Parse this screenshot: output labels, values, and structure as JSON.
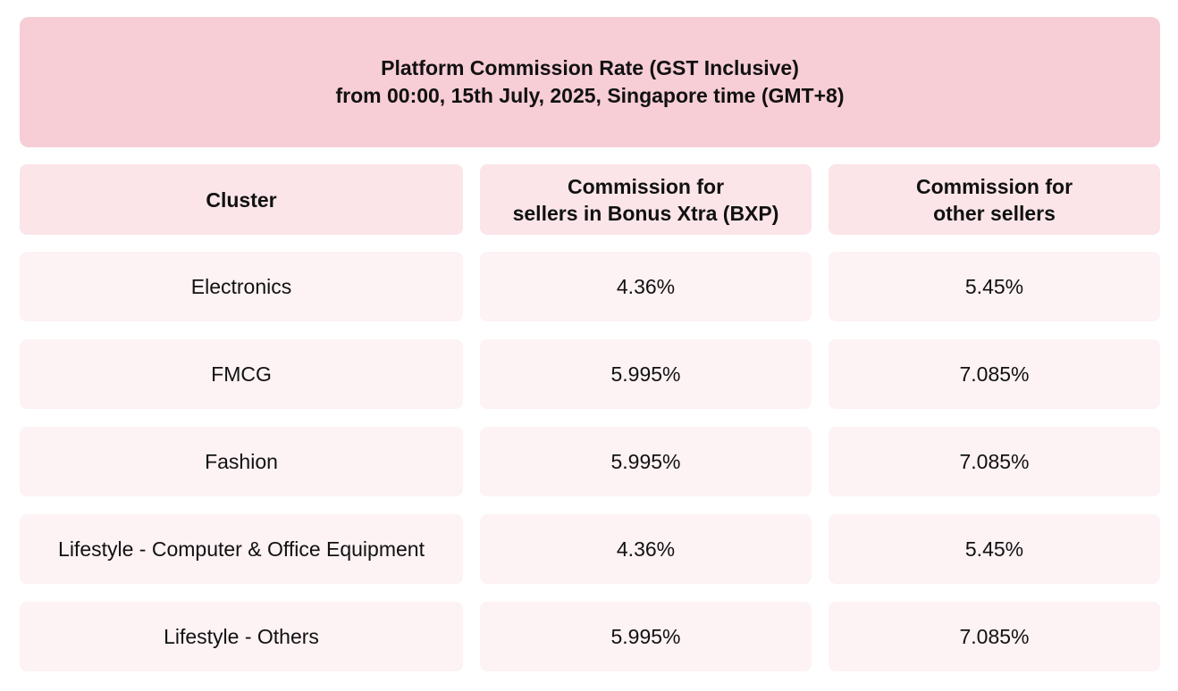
{
  "banner": {
    "line1": "Platform Commission Rate (GST Inclusive)",
    "line2": "from 00:00, 15th July, 2025, Singapore time (GMT+8)"
  },
  "table": {
    "headers": {
      "cluster": "Cluster",
      "bxp_line1": "Commission for",
      "bxp_line2": "sellers in Bonus Xtra (BXP)",
      "other_line1": "Commission for",
      "other_line2": "other sellers"
    },
    "rows": [
      {
        "cluster": "Electronics",
        "bxp": "4.36%",
        "other": "5.45%"
      },
      {
        "cluster": "FMCG",
        "bxp": "5.995%",
        "other": "7.085%"
      },
      {
        "cluster": "Fashion",
        "bxp": "5.995%",
        "other": "7.085%"
      },
      {
        "cluster": "Lifestyle - Computer & Office Equipment",
        "bxp": "4.36%",
        "other": "5.45%"
      },
      {
        "cluster": "Lifestyle - Others",
        "bxp": "5.995%",
        "other": "7.085%"
      }
    ]
  },
  "colors": {
    "banner_bg": "#f7cdd6",
    "header_bg": "#fbe5e9",
    "row_bg": "#fdf2f4"
  }
}
